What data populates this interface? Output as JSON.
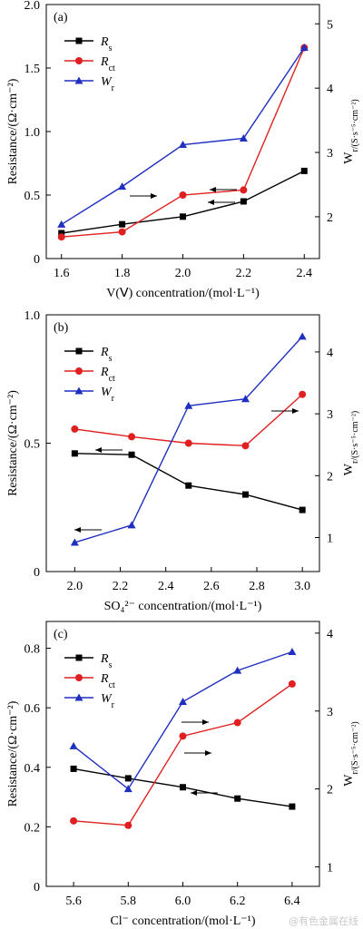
{
  "watermark": "@有色金属在线",
  "chart_data": [
    {
      "type": "line",
      "panel_label": "(a)",
      "xlabel": "V(Ⅴ) concentration/(mol·L⁻¹)",
      "ylabel_left": "Resistance/(Ω·cm⁻²)",
      "ylabel_right": "W_r/(S·s⁻⁵·cm⁻²)",
      "x": [
        1.6,
        1.8,
        2.0,
        2.2,
        2.4
      ],
      "x_ticks": [
        "1.6",
        "1.8",
        "2.0",
        "2.2",
        "2.4"
      ],
      "xlim": [
        1.55,
        2.45
      ],
      "ylim_left": [
        0,
        2.0
      ],
      "left_ticks": [
        "0",
        "0.5",
        "1.0",
        "1.5",
        "2.0"
      ],
      "ylim_right": [
        1.35,
        5.3
      ],
      "right_ticks": [
        "2",
        "3",
        "4",
        "5"
      ],
      "legend": {
        "placement": "top-left"
      },
      "series": [
        {
          "name": "R_s",
          "axis": "left",
          "marker": "square",
          "color": "#000000",
          "values": [
            0.2,
            0.27,
            0.33,
            0.45,
            0.69
          ]
        },
        {
          "name": "R_ct",
          "axis": "left",
          "marker": "circle",
          "color": "#e02020",
          "values": [
            0.17,
            0.21,
            0.5,
            0.54,
            1.66
          ]
        },
        {
          "name": "W_r",
          "axis": "right",
          "marker": "triangle",
          "color": "#1f2fbf",
          "values": [
            1.88,
            2.47,
            3.12,
            3.22,
            4.63
          ]
        }
      ]
    },
    {
      "type": "line",
      "panel_label": "(b)",
      "xlabel": "SO₄²⁻ concentration/(mol·L⁻¹)",
      "ylabel_left": "Resistance/(Ω·cm⁻²)",
      "ylabel_right": "W_r/(S·s⁻⁵·cm⁻²)",
      "x": [
        2.0,
        2.25,
        2.5,
        2.75,
        3.0
      ],
      "x_ticks": [
        "2.0",
        "2.2",
        "2.4",
        "2.6",
        "2.8",
        "3.0"
      ],
      "xlim": [
        1.875,
        3.075
      ],
      "ylim_left": [
        0,
        1.0
      ],
      "left_ticks": [
        "0",
        "0.5",
        "1.0"
      ],
      "ylim_right": [
        0.45,
        4.6
      ],
      "right_ticks": [
        "1",
        "2",
        "3",
        "4"
      ],
      "legend": {
        "placement": "top-left"
      },
      "series": [
        {
          "name": "R_s",
          "axis": "left",
          "marker": "square",
          "color": "#000000",
          "values": [
            0.46,
            0.455,
            0.335,
            0.3,
            0.24
          ]
        },
        {
          "name": "R_ct",
          "axis": "left",
          "marker": "circle",
          "color": "#e02020",
          "values": [
            0.555,
            0.525,
            0.5,
            0.49,
            0.69
          ]
        },
        {
          "name": "W_r",
          "axis": "right",
          "marker": "triangle",
          "color": "#1f2fbf",
          "values": [
            0.92,
            1.2,
            3.13,
            3.24,
            4.25
          ]
        }
      ]
    },
    {
      "type": "line",
      "panel_label": "(c)",
      "xlabel": "Cl⁻ concentration/(mol·L⁻¹)",
      "ylabel_left": "Resistance/(Ω·cm⁻²)",
      "ylabel_right": "W_r/(S·s⁻⁵·cm⁻²)",
      "x": [
        5.6,
        5.8,
        6.0,
        6.2,
        6.4
      ],
      "x_ticks": [
        "5.6",
        "5.8",
        "6.0",
        "6.2",
        "6.4"
      ],
      "xlim": [
        5.5,
        6.5
      ],
      "ylim_left": [
        0,
        0.89
      ],
      "left_ticks": [
        "0",
        "0.2",
        "0.4",
        "0.6",
        "0.8"
      ],
      "ylim_right": [
        0.75,
        4.15
      ],
      "right_ticks": [
        "1",
        "2",
        "3",
        "4"
      ],
      "legend": {
        "placement": "top-left"
      },
      "series": [
        {
          "name": "R_s",
          "axis": "left",
          "marker": "square",
          "color": "#000000",
          "values": [
            0.395,
            0.363,
            0.333,
            0.295,
            0.268
          ]
        },
        {
          "name": "R_ct",
          "axis": "left",
          "marker": "circle",
          "color": "#e02020",
          "values": [
            0.22,
            0.205,
            0.505,
            0.55,
            0.68
          ]
        },
        {
          "name": "W_r",
          "axis": "right",
          "marker": "triangle",
          "color": "#1f2fbf",
          "values": [
            2.55,
            2.0,
            3.12,
            3.52,
            3.76
          ]
        }
      ]
    }
  ]
}
